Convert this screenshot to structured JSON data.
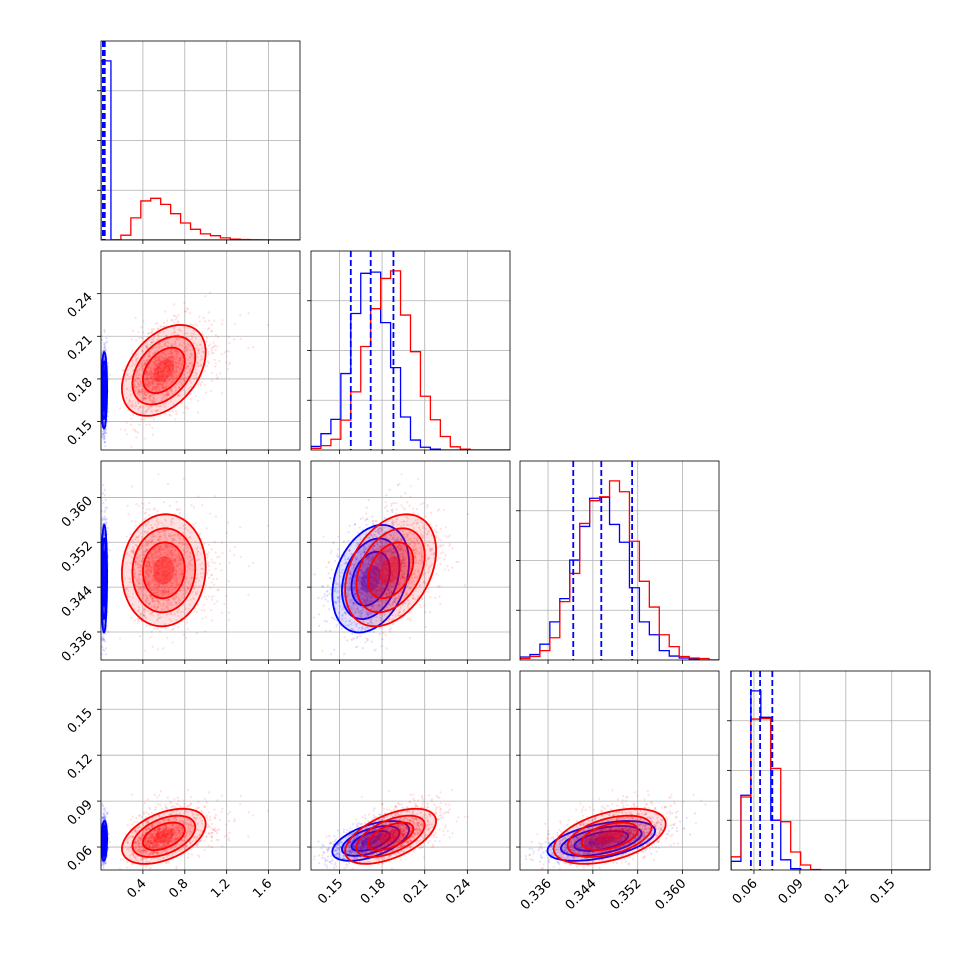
{
  "colors": {
    "series_a": "#0000ff",
    "series_b": "#ff0000",
    "grid": "#b0b0b0",
    "axes": "#000000",
    "background": "#ffffff"
  },
  "chart_data": {
    "type": "corner",
    "grid": true,
    "variables": [
      {
        "ticks": [
          0.4,
          0.8,
          1.2,
          1.6
        ],
        "tick_labels": [
          "0.4",
          "0.8",
          "1.2",
          "1.6"
        ],
        "range": [
          0.0,
          1.9
        ]
      },
      {
        "ticks": [
          0.15,
          0.18,
          0.21,
          0.24
        ],
        "tick_labels": [
          "0.15",
          "0.18",
          "0.21",
          "0.24"
        ],
        "range": [
          0.13,
          0.27
        ]
      },
      {
        "ticks": [
          0.336,
          0.344,
          0.352,
          0.36
        ],
        "tick_labels": [
          "0.336",
          "0.344",
          "0.352",
          "0.360"
        ],
        "range": [
          0.331,
          0.3665
        ]
      },
      {
        "ticks": [
          0.06,
          0.09,
          0.12,
          0.15
        ],
        "tick_labels": [
          "0.06",
          "0.09",
          "0.12",
          "0.15"
        ],
        "range": [
          0.045,
          0.175
        ]
      }
    ],
    "series": [
      {
        "color": "#0000ff",
        "mean": [
          0.03,
          0.172,
          0.3455,
          0.064
        ],
        "std": [
          0.014,
          0.0135,
          0.0048,
          0.0065
        ],
        "quantiles": [
          [
            0.018,
            0.026,
            0.036
          ],
          [
            0.158,
            0.172,
            0.188
          ],
          [
            0.3405,
            0.3455,
            0.351
          ],
          [
            0.058,
            0.064,
            0.072
          ]
        ],
        "correlations": [
          [
            0,
            1,
            0.05
          ],
          [
            0,
            2,
            0.05
          ],
          [
            0,
            3,
            0.1
          ],
          [
            1,
            2,
            0.3
          ],
          [
            1,
            3,
            0.55
          ],
          [
            2,
            3,
            0.5
          ]
        ]
      },
      {
        "color": "#ff0000",
        "mean": [
          0.6,
          0.186,
          0.347,
          0.067
        ],
        "std": [
          0.2,
          0.016,
          0.005,
          0.009
        ],
        "quantiles": null,
        "correlations": [
          [
            0,
            1,
            0.4
          ],
          [
            0,
            2,
            0.05
          ],
          [
            0,
            3,
            0.45
          ],
          [
            1,
            2,
            0.35
          ],
          [
            1,
            3,
            0.55
          ],
          [
            2,
            3,
            0.45
          ]
        ]
      }
    ]
  }
}
